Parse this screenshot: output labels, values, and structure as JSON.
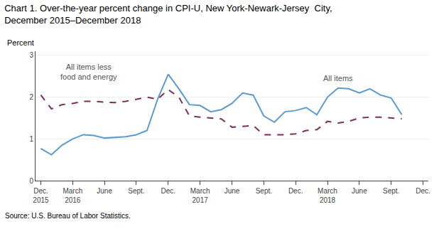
{
  "chart_data": {
    "type": "line",
    "title": "Chart 1. Over-the-year percent change in CPI-U, New York-Newark-Jersey  City,",
    "subtitle": "December 2015–December 2018",
    "y_label": "Percent",
    "source": "Source: U.S. Bureau of Labor Statistics.",
    "categories": [
      "Dec.\n2015",
      null,
      null,
      "March\n2016",
      null,
      null,
      "June",
      null,
      null,
      "Sept.",
      null,
      null,
      "Dec.",
      null,
      null,
      "March\n2017",
      null,
      null,
      "June",
      null,
      null,
      "Sept.",
      null,
      null,
      "Dec.",
      null,
      null,
      "March\n2018",
      null,
      null,
      "June",
      null,
      null,
      "Sept.",
      null,
      null,
      "Dec."
    ],
    "series": [
      {
        "name": "All items",
        "color": "#5B9BD5",
        "line_style": "solid",
        "values": [
          0.77,
          0.62,
          0.85,
          1.0,
          1.1,
          1.08,
          1.02,
          1.03,
          1.05,
          1.1,
          1.2,
          1.95,
          2.55,
          2.2,
          1.82,
          1.8,
          1.65,
          1.7,
          1.85,
          2.1,
          2.05,
          1.55,
          1.4,
          1.65,
          1.68,
          1.75,
          1.58,
          2.0,
          2.22,
          2.2,
          2.1,
          2.2,
          2.05,
          1.98,
          1.58,
          null,
          null
        ]
      },
      {
        "name": "All items less food and energy",
        "color": "#7B2D5E",
        "line_style": "dashed",
        "values": [
          2.05,
          1.72,
          1.82,
          1.85,
          1.9,
          1.9,
          1.88,
          1.87,
          1.9,
          1.95,
          2.0,
          1.95,
          2.18,
          2.0,
          1.55,
          1.52,
          1.5,
          1.48,
          1.28,
          1.3,
          1.32,
          1.1,
          1.1,
          1.1,
          1.12,
          1.2,
          1.22,
          1.42,
          1.38,
          1.42,
          1.5,
          1.52,
          1.52,
          1.5,
          1.48,
          null,
          null
        ]
      }
    ],
    "annotations": [
      {
        "text": "All items less\nfood and energy",
        "x": 4.5,
        "y": 2.35
      },
      {
        "text": "All items",
        "x": 28,
        "y": 2.32
      }
    ],
    "ylim": [
      0,
      3.1
    ],
    "yticks": [
      0,
      1,
      2,
      3
    ],
    "grid": true
  }
}
